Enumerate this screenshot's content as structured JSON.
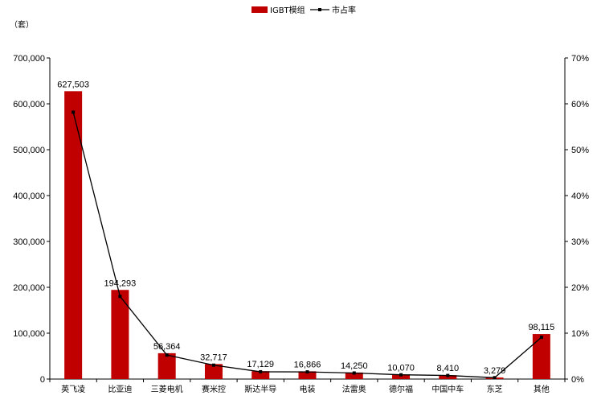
{
  "chart_data": {
    "type": "bar",
    "unit_label": "（套）",
    "categories": [
      "英飞凌",
      "比亚迪",
      "三菱电机",
      "赛米控",
      "斯达半导",
      "电装",
      "法雷奥",
      "德尔福",
      "中国中车",
      "东芝",
      "其他"
    ],
    "series": [
      {
        "name": "IGBT模组",
        "type": "bar",
        "axis": "left",
        "color": "#c00000",
        "values": [
          627503,
          194293,
          56364,
          32717,
          17129,
          16866,
          14250,
          10070,
          8410,
          3279,
          98115
        ],
        "labels": [
          "627,503",
          "194,293",
          "56,364",
          "32,717",
          "17,129",
          "16,866",
          "14,250",
          "10,070",
          "8,410",
          "3,279",
          "98,115"
        ]
      },
      {
        "name": "市占率",
        "type": "line",
        "axis": "right",
        "color": "#000000",
        "values": [
          0.5817,
          0.1802,
          0.0523,
          0.0303,
          0.0159,
          0.0156,
          0.0132,
          0.0093,
          0.0078,
          0.003,
          0.091
        ]
      }
    ],
    "y_left": {
      "lim": [
        0,
        700000
      ],
      "ticks": [
        "0",
        "100,000",
        "200,000",
        "300,000",
        "400,000",
        "500,000",
        "600,000",
        "700,000"
      ]
    },
    "y_right": {
      "lim": [
        0,
        0.7
      ],
      "ticks": [
        "0%",
        "10%",
        "20%",
        "30%",
        "40%",
        "50%",
        "60%",
        "70%"
      ]
    },
    "grid": false,
    "legend_position": "top-center"
  }
}
